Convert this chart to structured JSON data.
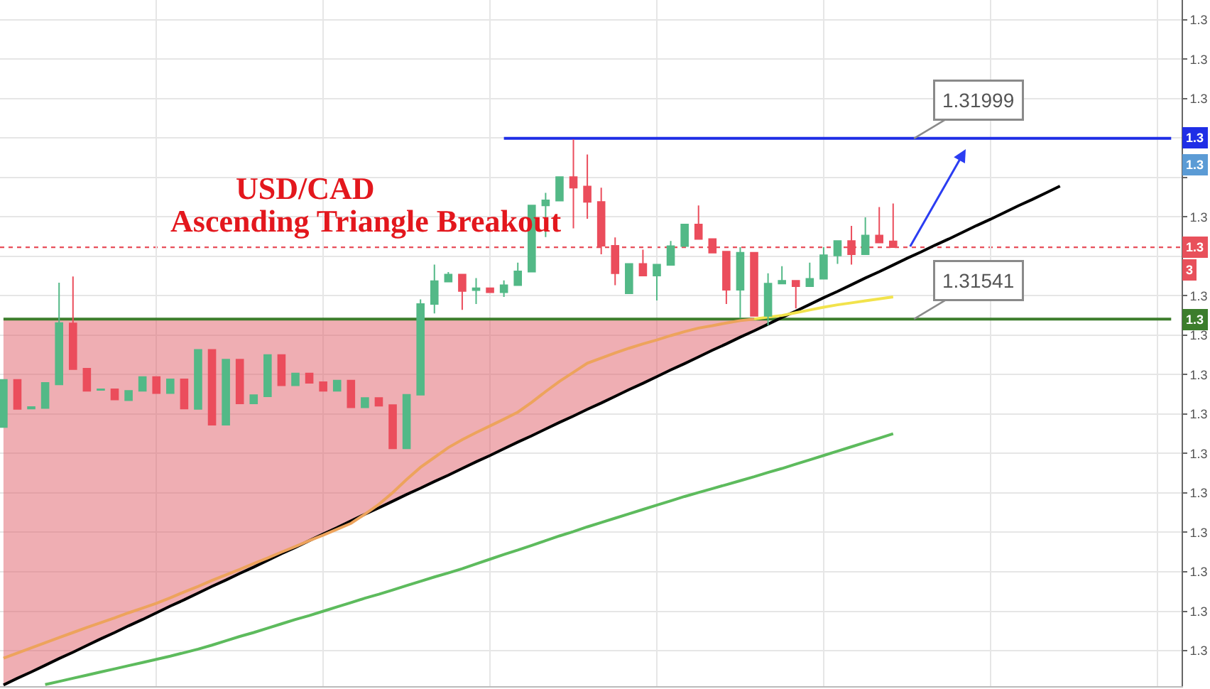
{
  "chart_data": {
    "type": "candlestick",
    "title": "USD/CAD\nAscending Triangle Breakout",
    "categories": [
      null,
      null,
      null,
      null,
      null,
      null,
      null,
      null,
      null,
      null,
      null,
      null,
      null,
      null,
      null,
      null,
      null,
      null,
      null,
      null,
      null,
      null,
      null,
      null,
      null,
      null,
      null,
      null,
      null,
      null,
      null,
      null,
      null,
      null,
      null,
      null,
      null,
      null,
      null,
      null,
      null,
      null,
      null,
      null,
      null,
      null,
      null,
      null,
      null,
      null,
      null,
      null,
      null,
      null,
      null,
      null,
      null,
      null,
      null,
      null,
      null,
      null,
      null,
      null,
      null,
      null,
      null,
      null,
      null,
      null,
      null,
      null,
      null,
      null,
      null,
      null,
      null,
      null,
      null,
      null,
      null,
      null,
      null,
      null,
      null
    ],
    "ylim": [
      1.3061,
      1.3235
    ],
    "yticks": [
      {
        "value": 1.323,
        "label": "1.3"
      },
      {
        "value": 1.322,
        "label": "1.3"
      },
      {
        "value": 1.321,
        "label": "1.3"
      },
      {
        "value": 1.32,
        "label": null
      },
      {
        "value": 1.319,
        "label": null
      },
      {
        "value": 1.318,
        "label": "1.3"
      },
      {
        "value": 1.317,
        "label": null
      },
      {
        "value": 1.316,
        "label": "1.3"
      },
      {
        "value": 1.315,
        "label": "1.3"
      },
      {
        "value": 1.314,
        "label": "1.3"
      },
      {
        "value": 1.313,
        "label": "1.3"
      },
      {
        "value": 1.312,
        "label": "1.3"
      },
      {
        "value": 1.311,
        "label": "1.3"
      },
      {
        "value": 1.31,
        "label": "1.3"
      },
      {
        "value": 1.309,
        "label": "1.3"
      },
      {
        "value": 1.308,
        "label": "1.3"
      },
      {
        "value": 1.307,
        "label": "1.3"
      }
    ],
    "grid": true,
    "tick_labels": "y",
    "series": [
      {
        "type": "line",
        "name": "1.31541",
        "color": "#3c7d2c",
        "values": [
          1.31541,
          1.31541,
          1.31541,
          1.31541,
          1.31541,
          1.31541,
          1.31541,
          1.31541,
          1.31541,
          1.31541,
          1.31541,
          1.31541,
          1.31541,
          1.31541,
          1.31541,
          1.31541,
          1.31541,
          1.31541,
          1.31541,
          1.31541,
          1.31541,
          1.31541,
          1.31541,
          1.31541,
          1.31541,
          1.31541,
          1.31541,
          1.31541,
          1.31541,
          1.31541,
          1.31541,
          1.31541,
          1.31541,
          1.31541,
          1.31541,
          1.31541,
          1.31541,
          1.31541,
          1.31541,
          1.31541,
          1.31541,
          1.31541,
          1.31541,
          1.31541,
          1.31541,
          1.31541,
          1.31541,
          1.31541,
          1.31541,
          1.31541,
          1.31541,
          1.31541,
          1.31541,
          1.31541,
          1.31541,
          1.31541,
          1.31541,
          1.31541,
          1.31541,
          1.31541,
          1.31541,
          1.31541,
          1.31541,
          1.31541,
          1.31541,
          1.31541,
          1.31541,
          1.31541,
          1.31541,
          1.31541,
          1.31541,
          1.31541,
          1.31541,
          1.31541,
          1.31541,
          1.31541,
          1.31541,
          1.31541,
          1.31541,
          1.31541,
          1.31541,
          1.31541,
          1.31541,
          1.31541,
          1.31541
        ]
      },
      {
        "type": "line",
        "color": "#000000",
        "values": [
          1.30613,
          1.3063,
          1.30646,
          1.30663,
          1.3068,
          1.30696,
          1.30713,
          1.3073,
          1.30746,
          1.30763,
          1.30779,
          1.30796,
          1.30813,
          1.30829,
          1.30846,
          1.30863,
          1.30879,
          1.30896,
          1.30912,
          1.30929,
          1.30946,
          1.30962,
          1.30979,
          1.30996,
          1.31012,
          1.31029,
          1.31046,
          1.31062,
          1.31079,
          1.31096,
          1.31112,
          1.31129,
          1.31145,
          1.31162,
          1.31179,
          1.31195,
          1.31212,
          1.31229,
          1.31245,
          1.31262,
          1.31279,
          1.31295,
          1.31312,
          1.31328,
          1.31345,
          1.31362,
          1.31378,
          1.31395,
          1.31412,
          1.31428,
          1.31445,
          1.31462,
          1.31478,
          1.31495,
          1.31511,
          1.31528,
          1.31545,
          1.31561,
          1.31578,
          1.31595,
          1.31611,
          1.31628,
          1.31645,
          1.31661,
          1.31678,
          1.31695,
          1.31711,
          1.31728,
          1.31744,
          1.31761,
          1.31778,
          1.31794,
          1.31811,
          1.31828,
          1.31844,
          1.31861,
          1.31878,
          null,
          null,
          null,
          null,
          null,
          null,
          null,
          null
        ],
        "lower": [
          1.30613,
          1.3063,
          1.30646,
          1.30663,
          1.3068,
          1.30696,
          1.30713,
          1.3073,
          1.30746,
          1.30763,
          1.30779,
          1.30796,
          1.30813,
          1.30829,
          1.30846,
          1.30863,
          1.30879,
          1.30896,
          1.30912,
          1.30929,
          1.30946,
          1.30962,
          1.30979,
          1.30996,
          1.31012,
          1.31029,
          1.31046,
          1.31062,
          1.31079,
          1.31096,
          1.31112,
          1.31129,
          1.31145,
          1.31162,
          1.31179,
          1.31195,
          1.31212,
          1.31229,
          1.31245,
          1.31262,
          1.31279,
          1.31295,
          1.31312,
          1.31328,
          1.31345,
          1.31362,
          1.31378,
          1.31395,
          1.31412,
          1.31428,
          1.31445,
          1.31462,
          1.31478,
          1.31495,
          1.31511,
          1.31528,
          null,
          null,
          null,
          null,
          null,
          null,
          null,
          null,
          null,
          null,
          null,
          null,
          null,
          null,
          null,
          null,
          null,
          null,
          null,
          null,
          null,
          null,
          null,
          null,
          null,
          null,
          null,
          null,
          null
        ],
        "upper": [
          1.31541,
          1.31541,
          1.31541,
          1.31541,
          1.31541,
          1.31541,
          1.31541,
          1.31541,
          1.31541,
          1.31541,
          1.31541,
          1.31541,
          1.31541,
          1.31541,
          1.31541,
          1.31541,
          1.31541,
          1.31541,
          1.31541,
          1.31541,
          1.31541,
          1.31541,
          1.31541,
          1.31541,
          1.31541,
          1.31541,
          1.31541,
          1.31541,
          1.31541,
          1.31541,
          1.31541,
          1.31541,
          1.31541,
          1.31541,
          1.31541,
          1.31541,
          1.31541,
          1.31541,
          1.31541,
          1.31541,
          1.31541,
          1.31541,
          1.31541,
          1.31541,
          1.31541,
          1.31541,
          1.31541,
          1.31541,
          1.31541,
          1.31541,
          1.31541,
          1.31541,
          1.31541,
          1.31541,
          1.31541,
          1.31541,
          null,
          null,
          null,
          null,
          null,
          null,
          null,
          null,
          null,
          null,
          null,
          null,
          null,
          null,
          null,
          null,
          null,
          null,
          null,
          null,
          null,
          null,
          null,
          null,
          null,
          null,
          null,
          null,
          null
        ]
      },
      {
        "type": "line",
        "color": "#eda35c",
        "values": [
          1.30681,
          1.30694,
          1.30707,
          1.3072,
          1.30733,
          1.30746,
          1.30759,
          1.30771,
          1.30783,
          1.30796,
          1.30808,
          1.3082,
          1.30834,
          1.30849,
          1.30863,
          1.30878,
          1.30892,
          1.30906,
          1.30921,
          1.30935,
          1.3095,
          1.30964,
          1.30979,
          1.30993,
          1.31008,
          1.31023,
          1.31046,
          1.31071,
          1.31101,
          1.31134,
          1.31165,
          1.3119,
          1.31215,
          1.31235,
          1.31253,
          1.3127,
          1.31287,
          1.31305,
          1.3133,
          1.31357,
          1.31383,
          1.31406,
          1.31429,
          1.31442,
          1.31455,
          1.31467,
          1.31478,
          1.31488,
          1.31499,
          1.31509,
          1.31518,
          1.31524,
          1.31531,
          1.31537,
          1.31541,
          null,
          null,
          null,
          null,
          null,
          null,
          null,
          null,
          null,
          null,
          null,
          null,
          null,
          null,
          null,
          null,
          null,
          null,
          null,
          null,
          null,
          null,
          null,
          null,
          null,
          null,
          null,
          null,
          null,
          null
        ]
      },
      {
        "type": "line",
        "color": "#f2e34c",
        "values": [
          null,
          null,
          null,
          null,
          null,
          null,
          null,
          null,
          null,
          null,
          null,
          null,
          null,
          null,
          null,
          null,
          null,
          null,
          null,
          null,
          null,
          null,
          null,
          null,
          null,
          null,
          null,
          null,
          null,
          null,
          null,
          null,
          null,
          null,
          null,
          null,
          null,
          null,
          null,
          null,
          null,
          null,
          null,
          null,
          null,
          null,
          null,
          null,
          null,
          null,
          null,
          null,
          null,
          null,
          1.31541,
          1.31546,
          1.3155,
          1.31557,
          1.31564,
          1.31571,
          1.31577,
          1.31582,
          1.31587,
          1.31592,
          1.31597,
          null,
          null,
          null,
          null,
          null,
          null,
          null,
          null,
          null,
          null,
          null,
          null,
          null,
          null,
          null,
          null,
          null,
          null,
          null,
          null
        ]
      },
      {
        "type": "line",
        "color": "#5dbb5d",
        "values": [
          null,
          null,
          null,
          1.30614,
          1.30622,
          1.3063,
          1.30638,
          1.30646,
          1.30654,
          1.30662,
          1.3067,
          1.30678,
          1.30686,
          1.30695,
          1.30704,
          1.30714,
          1.30725,
          1.30736,
          1.30746,
          1.30757,
          1.30768,
          1.30779,
          1.30789,
          1.308,
          1.30811,
          1.30822,
          1.30833,
          1.30843,
          1.30854,
          1.30865,
          1.30876,
          1.30887,
          1.30897,
          1.30908,
          1.3092,
          1.30932,
          1.30944,
          1.30955,
          1.30967,
          1.30979,
          1.30991,
          1.31002,
          1.31014,
          1.31025,
          1.31036,
          1.31047,
          1.31058,
          1.31069,
          1.3108,
          1.31091,
          1.31101,
          1.31111,
          1.31121,
          1.31131,
          1.31141,
          1.31152,
          1.31162,
          1.31173,
          1.31184,
          1.31195,
          1.31206,
          1.31217,
          1.31228,
          1.31239,
          1.3125,
          null,
          null,
          null,
          null,
          null,
          null,
          null,
          null,
          null,
          null,
          null,
          null,
          null,
          null,
          null,
          null,
          null,
          null,
          null,
          null
        ]
      },
      {
        "type": "line",
        "name": "1.31999",
        "color": "#1f2ee6",
        "values": [
          null,
          null,
          null,
          null,
          null,
          null,
          null,
          null,
          null,
          null,
          null,
          null,
          null,
          null,
          null,
          null,
          null,
          null,
          null,
          null,
          null,
          null,
          null,
          null,
          null,
          null,
          null,
          null,
          null,
          null,
          null,
          null,
          null,
          null,
          null,
          null,
          1.31999,
          1.31999,
          1.31999,
          1.31999,
          1.31999,
          1.31999,
          1.31999,
          1.31999,
          1.31999,
          1.31999,
          1.31999,
          1.31999,
          1.31999,
          1.31999,
          1.31999,
          1.31999,
          1.31999,
          1.31999,
          1.31999,
          1.31999,
          1.31999,
          1.31999,
          1.31999,
          1.31999,
          1.31999,
          1.31999,
          1.31999,
          1.31999,
          1.31999,
          1.31999,
          1.31999,
          1.31999,
          1.31999,
          1.31999,
          1.31999,
          1.31999,
          1.31999,
          1.31999,
          1.31999,
          1.31999,
          1.31999,
          1.31999,
          1.31999,
          1.31999,
          1.31999,
          1.31999,
          1.31999,
          1.31999,
          1.31999
        ]
      },
      {
        "ohlc": [
          [
            1.31267,
            1.31387,
            1.31267,
            1.31387
          ],
          [
            1.31387,
            1.31387,
            1.31313,
            1.31313
          ],
          [
            1.31314,
            1.31318,
            1.31314,
            1.31318
          ],
          [
            1.31315,
            1.31379,
            1.31315,
            1.31379
          ],
          [
            1.31375,
            1.31633,
            1.31375,
            1.31531
          ],
          [
            1.3153,
            1.31649,
            1.31414,
            1.31414
          ],
          [
            1.31415,
            1.31415,
            1.31359,
            1.31359
          ],
          [
            1.31361,
            1.31363,
            1.31361,
            1.31363
          ],
          [
            1.31363,
            1.31363,
            1.31337,
            1.31337
          ],
          [
            1.31335,
            1.31359,
            1.31335,
            1.31359
          ],
          [
            1.31359,
            1.31394,
            1.31359,
            1.31394
          ],
          [
            1.31394,
            1.31394,
            1.31353,
            1.31353
          ],
          [
            1.31353,
            1.31388,
            1.31353,
            1.31388
          ],
          [
            1.31388,
            1.31388,
            1.31314,
            1.31314
          ],
          [
            1.31313,
            1.31463,
            1.31313,
            1.31463
          ],
          [
            1.31463,
            1.31463,
            1.31273,
            1.31273
          ],
          [
            1.31273,
            1.31438,
            1.31273,
            1.31438
          ],
          [
            1.31438,
            1.31438,
            1.31327,
            1.31327
          ],
          [
            1.31327,
            1.31348,
            1.31327,
            1.31348
          ],
          [
            1.31345,
            1.3145,
            1.31345,
            1.3145
          ],
          [
            1.3145,
            1.3145,
            1.31373,
            1.31373
          ],
          [
            1.31373,
            1.31403,
            1.31373,
            1.31403
          ],
          [
            1.31403,
            1.31403,
            1.31379,
            1.31379
          ],
          [
            1.31381,
            1.31381,
            1.31359,
            1.31359
          ],
          [
            1.31359,
            1.31385,
            1.31359,
            1.31385
          ],
          [
            1.31385,
            1.31385,
            1.31317,
            1.31317
          ],
          [
            1.31317,
            1.31341,
            1.31317,
            1.31341
          ],
          [
            1.31341,
            1.31341,
            1.31321,
            1.31321
          ],
          [
            1.31323,
            1.31323,
            1.31213,
            1.31213
          ],
          [
            1.31213,
            1.31349,
            1.31213,
            1.31349
          ],
          [
            1.31349,
            1.31591,
            1.31349,
            1.31579
          ],
          [
            1.31579,
            1.31679,
            1.31555,
            1.31637
          ],
          [
            1.31636,
            1.3166,
            1.31636,
            1.31654
          ],
          [
            1.31654,
            1.31654,
            1.31564,
            1.31612
          ],
          [
            1.31614,
            1.31645,
            1.31579,
            1.31619
          ],
          [
            1.31619,
            1.31619,
            1.31609,
            1.31609
          ],
          [
            1.31609,
            1.31639,
            1.31597,
            1.31627
          ],
          [
            1.31627,
            1.31684,
            1.31627,
            1.31662
          ],
          [
            1.31661,
            1.31829,
            1.31661,
            1.31829
          ],
          [
            1.31829,
            1.31861,
            1.31749,
            1.31842
          ],
          [
            1.31841,
            1.31901,
            1.31841,
            1.31901
          ],
          [
            1.31901,
            1.31997,
            1.31771,
            1.31874
          ],
          [
            1.31877,
            1.31958,
            1.31795,
            1.31838
          ],
          [
            1.31838,
            1.31874,
            1.31705,
            1.31727
          ],
          [
            1.31727,
            1.31748,
            1.31627,
            1.31657
          ],
          [
            1.31606,
            1.31681,
            1.31606,
            1.31681
          ],
          [
            1.31681,
            1.31717,
            1.31651,
            1.31651
          ],
          [
            1.31651,
            1.31679,
            1.31588,
            1.31679
          ],
          [
            1.31678,
            1.31739,
            1.31678,
            1.31726
          ],
          [
            1.31726,
            1.31781,
            1.31726,
            1.31781
          ],
          [
            1.31781,
            1.31829,
            1.31744,
            1.31744
          ],
          [
            1.31744,
            1.31744,
            1.31709,
            1.31709
          ],
          [
            1.31712,
            1.31712,
            1.31579,
            1.31615
          ],
          [
            1.31615,
            1.31723,
            1.31543,
            1.31709
          ],
          [
            1.31709,
            1.31709,
            1.31549,
            1.31549
          ],
          [
            1.31549,
            1.31657,
            1.31525,
            1.31631
          ],
          [
            1.31631,
            1.31675,
            1.31631,
            1.31638
          ],
          [
            1.31638,
            1.31638,
            1.31568,
            1.31624
          ],
          [
            1.31624,
            1.31684,
            1.31624,
            1.31643
          ],
          [
            1.31643,
            1.31723,
            1.31643,
            1.31703
          ],
          [
            1.31702,
            1.31739,
            1.31681,
            1.31739
          ],
          [
            1.31739,
            1.31777,
            1.31679,
            1.31705
          ],
          [
            1.31705,
            1.31799,
            1.31705,
            1.31753
          ],
          [
            1.31753,
            1.31825,
            1.31735,
            1.31735
          ],
          [
            1.31738,
            1.31834,
            1.31723,
            1.31723
          ],
          null,
          null,
          null,
          null,
          null,
          null,
          null,
          null,
          null,
          null,
          null,
          null,
          null,
          null,
          null,
          null,
          null,
          null,
          null,
          null
        ],
        "colors": [
          "#53b987",
          "#eb4d5c",
          "#53b987",
          "#53b987",
          "#53b987",
          "#eb4d5c",
          "#eb4d5c",
          "#53b987",
          "#eb4d5c",
          "#53b987",
          "#53b987",
          "#eb4d5c",
          "#53b987",
          "#eb4d5c",
          "#53b987",
          "#eb4d5c",
          "#53b987",
          "#eb4d5c",
          "#53b987",
          "#53b987",
          "#eb4d5c",
          "#53b987",
          "#eb4d5c",
          "#eb4d5c",
          "#53b987",
          "#eb4d5c",
          "#53b987",
          "#eb4d5c",
          "#eb4d5c",
          "#53b987",
          "#53b987",
          "#53b987",
          "#53b987",
          "#eb4d5c",
          "#53b987",
          "#eb4d5c",
          "#53b987",
          "#53b987",
          "#53b987",
          "#53b987",
          "#53b987",
          "#eb4d5c",
          "#eb4d5c",
          "#eb4d5c",
          "#eb4d5c",
          "#53b987",
          "#eb4d5c",
          "#53b987",
          "#53b987",
          "#53b987",
          "#eb4d5c",
          "#eb4d5c",
          "#eb4d5c",
          "#53b987",
          "#eb4d5c",
          "#53b987",
          "#53b987",
          "#eb4d5c",
          "#53b987",
          "#53b987",
          "#53b987",
          "#eb4d5c",
          "#53b987",
          "#eb4d5c",
          "#eb4d5c",
          null,
          null,
          null,
          null,
          null,
          null,
          null,
          null,
          null,
          null,
          null,
          null,
          null,
          null,
          null,
          null,
          null,
          null,
          null,
          null
        ]
      }
    ],
    "ref_lines": [
      {
        "axis": "y",
        "value": 1.31723,
        "label": "1.3\n3",
        "color": "#e8505b",
        "line_style": "dotted"
      }
    ],
    "annotations": [
      {
        "text": "1.3",
        "y": 1.31999
      },
      {
        "text": "1.3",
        "y": 1.31932
      },
      {
        "text": "1.3",
        "y": 1.31541
      }
    ]
  }
}
